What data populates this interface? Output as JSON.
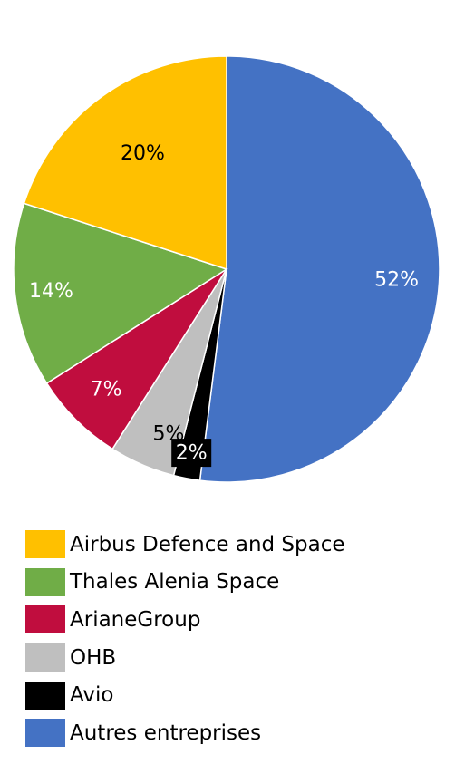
{
  "chart_data": {
    "type": "pie",
    "title": "",
    "slices": [
      {
        "name": "Autres entreprises",
        "value": 52,
        "label": "52%",
        "color": "#4472C4",
        "label_color": "#FFFFFF"
      },
      {
        "name": "Avio",
        "value": 2,
        "label": "2%",
        "color": "#000000",
        "label_color": "#FFFFFF"
      },
      {
        "name": "OHB",
        "value": 5,
        "label": "5%",
        "color": "#BFBFBF",
        "label_color": "#000000"
      },
      {
        "name": "ArianeGroup",
        "value": 7,
        "label": "7%",
        "color": "#C00D3E",
        "label_color": "#FFFFFF"
      },
      {
        "name": "Thales Alenia Space",
        "value": 14,
        "label": "14%",
        "color": "#70AD47",
        "label_color": "#FFFFFF"
      },
      {
        "name": "Airbus Defence and Space",
        "value": 20,
        "label": "20%",
        "color": "#FFC000",
        "label_color": "#000000"
      }
    ],
    "start_angle": "12 o'clock",
    "direction": "clockwise",
    "legend": {
      "position": "bottom-left",
      "items": [
        {
          "name": "Airbus Defence and Space",
          "color": "#FFC000"
        },
        {
          "name": "Thales Alenia Space",
          "color": "#70AD47"
        },
        {
          "name": "ArianeGroup",
          "color": "#C00D3E"
        },
        {
          "name": "OHB",
          "color": "#BFBFBF"
        },
        {
          "name": "Avio",
          "color": "#000000"
        },
        {
          "name": "Autres entreprises",
          "color": "#4472C4"
        }
      ]
    }
  }
}
